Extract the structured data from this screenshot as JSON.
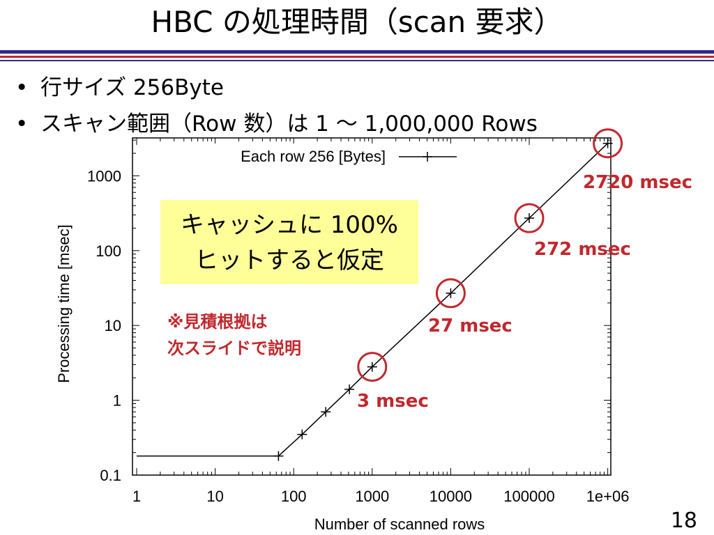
{
  "slide": {
    "title": "HBC の処理時間（scan 要求）",
    "bullets": [
      "行サイズ 256Byte",
      "スキャン範囲（Row 数）は 1 ～ 1,000,000 Rows"
    ],
    "page_number": "18"
  },
  "colors": {
    "title_rule_blue": "#2b2b8c",
    "title_rule_red": "#c1282d",
    "highlight_circle": "#c1282d",
    "callout_box": "#ffff99"
  },
  "chart_data": {
    "type": "line",
    "xlabel": "Number of scanned rows",
    "ylabel": "Processing time [msec]",
    "x_scale": "log",
    "y_scale": "log",
    "xlim": [
      1,
      1000000
    ],
    "ylim": [
      0.1,
      3000
    ],
    "x_ticks": [
      1,
      10,
      100,
      1000,
      10000,
      100000,
      1000000
    ],
    "x_tick_labels": [
      "1",
      "10",
      "100",
      "1000",
      "10000",
      "100000",
      "1e+06"
    ],
    "y_ticks": [
      0.1,
      1,
      10,
      100,
      1000
    ],
    "y_tick_labels": [
      "0.1",
      "1",
      "10",
      "100",
      "1000"
    ],
    "legend_position": "top",
    "grid": false,
    "series": [
      {
        "name": "Each row 256 [Bytes]",
        "line_start": [
          [
            1,
            0.18
          ],
          [
            64,
            0.18
          ]
        ],
        "points": [
          [
            64,
            0.18
          ],
          [
            128,
            0.35
          ],
          [
            256,
            0.7
          ],
          [
            512,
            1.4
          ],
          [
            1000,
            2.8
          ],
          [
            10000,
            27
          ],
          [
            100000,
            272
          ],
          [
            1000000,
            2720
          ]
        ]
      }
    ],
    "highlights": [
      {
        "x": 1000,
        "y": 2.8,
        "label": "3 msec"
      },
      {
        "x": 10000,
        "y": 27,
        "label": "27 msec"
      },
      {
        "x": 100000,
        "y": 272,
        "label": "272 msec"
      },
      {
        "x": 1000000,
        "y": 2720,
        "label": "2720 msec"
      }
    ],
    "callout": [
      "キャッシュに 100%",
      "ヒットすると仮定"
    ],
    "note": [
      "※見積根拠は",
      "次スライドで説明"
    ]
  }
}
